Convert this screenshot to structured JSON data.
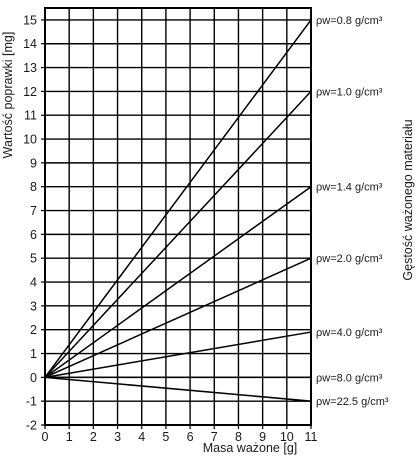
{
  "chart_data": {
    "type": "line",
    "xlabel": "Masa ważone  [g]",
    "ylabel": "Wartość poprawki [mg]",
    "right_label": "Gęstość ważonego materiału",
    "xlim": [
      0,
      11
    ],
    "ylim": [
      -2,
      15.5
    ],
    "x_ticks": [
      0,
      1,
      2,
      3,
      4,
      5,
      6,
      7,
      8,
      9,
      10,
      11
    ],
    "y_ticks": [
      -2,
      -1,
      0,
      1,
      2,
      3,
      4,
      5,
      6,
      7,
      8,
      9,
      10,
      11,
      12,
      13,
      14,
      15
    ],
    "grid": true,
    "series": [
      {
        "name": "ρw=0.8 g/cm³",
        "x": [
          0,
          11
        ],
        "y": [
          0,
          15.0
        ]
      },
      {
        "name": "ρw=1.0 g/cm³",
        "x": [
          0,
          11
        ],
        "y": [
          0,
          12.0
        ]
      },
      {
        "name": "ρw=1.4 g/cm³",
        "x": [
          0,
          11
        ],
        "y": [
          0,
          8.0
        ]
      },
      {
        "name": "ρw=2.0 g/cm³",
        "x": [
          0,
          11
        ],
        "y": [
          0,
          5.0
        ]
      },
      {
        "name": "ρw=4.0 g/cm³",
        "x": [
          0,
          11
        ],
        "y": [
          0,
          1.9
        ]
      },
      {
        "name": "ρw=8.0 g/cm³",
        "x": [
          0,
          11
        ],
        "y": [
          0,
          0.0
        ]
      },
      {
        "name": "ρw=22.5 g/cm³",
        "x": [
          0,
          11
        ],
        "y": [
          0,
          -1.0
        ]
      }
    ]
  }
}
